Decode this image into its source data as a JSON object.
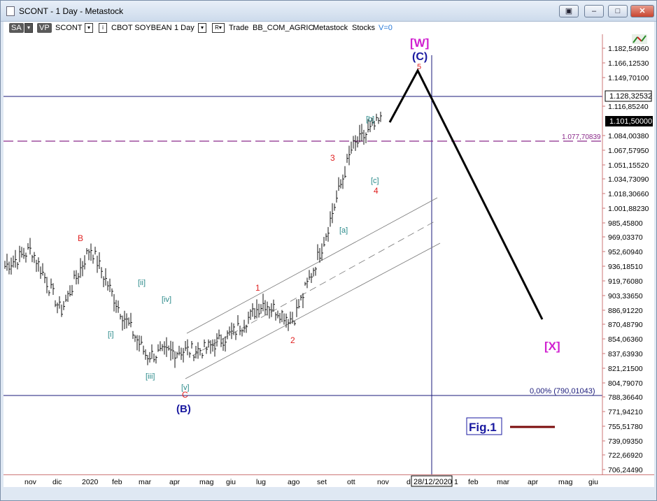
{
  "window": {
    "title": "SCONT - 1 Day - Metastock",
    "buttons": {
      "extra": "▣",
      "minimize": "–",
      "maximize": "□",
      "close": "✕"
    }
  },
  "toolbar": {
    "sa": "SA",
    "vp": "VP",
    "symbol": "SCONT",
    "name": "CBOT SOYBEAN",
    "period": "1 Day",
    "r": "R",
    "trade": "Trade",
    "source": "BB_COM_AGRIC",
    "app": "Metastock",
    "type": "Stocks",
    "volume": "V=0"
  },
  "price_axis": {
    "ticks": [
      "1.182,54960",
      "1.166,12530",
      "1.149,70100",
      "1.116,85240",
      "1.084,00380",
      "1.067,57950",
      "1.051,15520",
      "1.034,73090",
      "1.018,30660",
      "1.001,88230",
      "985,45800",
      "969,03370",
      "952,60940",
      "936,18510",
      "919,76080",
      "903,33650",
      "886,91220",
      "870,48790",
      "854,06360",
      "837,63930",
      "821,21500",
      "804,79070",
      "788,36640",
      "771,94210",
      "755,51780",
      "739,09350",
      "722,66920",
      "706,24490"
    ],
    "crosshair_value": "1.128,32532",
    "last_value": "1.101,50000",
    "fib_value": "1.077,70839",
    "fib_zero": "0,00% (790,01043)"
  },
  "x_axis": {
    "labels": [
      "nov",
      "dic",
      "2020",
      "feb",
      "mar",
      "apr",
      "mag",
      "giu",
      "lug",
      "ago",
      "set",
      "ott",
      "nov",
      "d",
      "1",
      "feb",
      "mar",
      "apr",
      "mag",
      "giu"
    ],
    "cursor_date": "28/12/2020"
  },
  "annotations": {
    "w": "[W]",
    "c_major": "(C)",
    "five": "5",
    "x": "[X]",
    "B": "B",
    "C": "C",
    "B_paren": "(B)",
    "i": "[i]",
    "ii": "[ii]",
    "iii": "[iii]",
    "iv": "[iv]",
    "v": "[v]",
    "one": "1",
    "two": "2",
    "three": "3",
    "four": "4",
    "a": "[a]",
    "b": "[b]",
    "c": "[c]",
    "fig": "Fig.1"
  },
  "colors": {
    "red_label": "#e02020",
    "teal_label": "#2a8a8a",
    "blue_label": "#1a1aa0",
    "magenta_label": "#d020d0",
    "fib_line": "#8a2a8a",
    "guide_line": "#1a1a7a",
    "fig_line": "#7a0a0a",
    "candle": "#111111"
  },
  "chart_data": {
    "type": "candlestick",
    "instrument": "CBOT SOYBEAN",
    "period": "1 Day",
    "ylim": [
      700,
      1195
    ],
    "x": [
      "nov",
      "dic",
      "2020",
      "feb",
      "mar",
      "apr",
      "mag",
      "giu",
      "lug",
      "ago",
      "set",
      "ott",
      "nov"
    ],
    "close": [
      935,
      885,
      958,
      890,
      835,
      840,
      842,
      862,
      895,
      875,
      960,
      1070,
      1101.5
    ],
    "levels": {
      "crosshair": 1128.32532,
      "last": 1101.5,
      "fib": 1077.70839,
      "fib_zero": 790.01043
    },
    "projection": {
      "from": 1101.5,
      "peak": 1162,
      "target": 880,
      "target_date": "apr"
    }
  }
}
